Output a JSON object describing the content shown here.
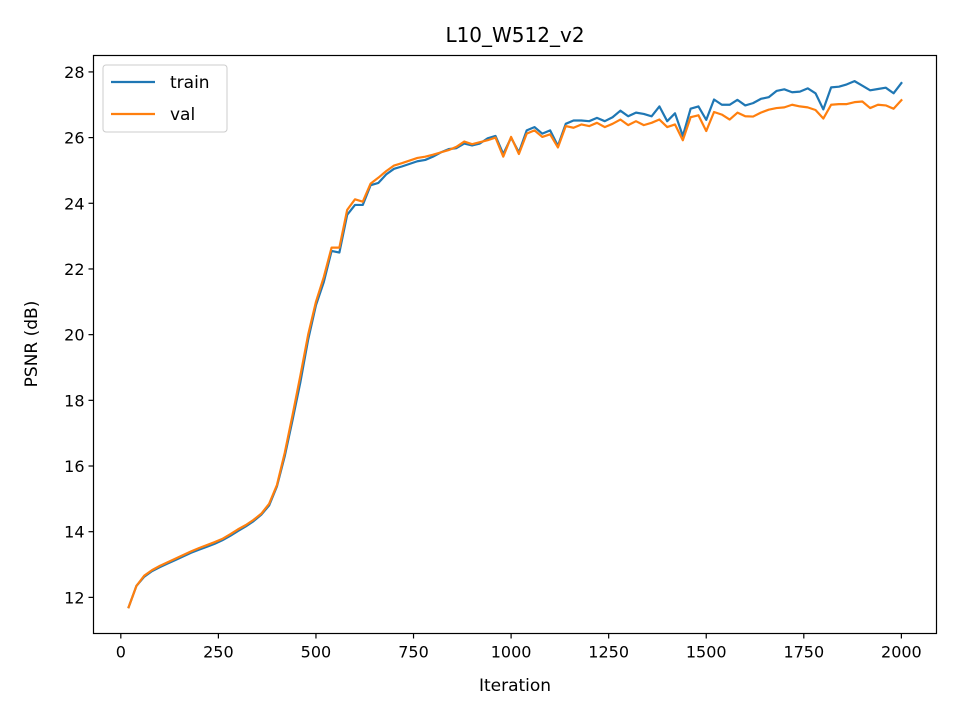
{
  "chart_data": {
    "type": "line",
    "title": "L10_W512_v2",
    "xlabel": "Iteration",
    "ylabel": "PSNR (dB)",
    "xlim": [
      -70,
      2090
    ],
    "ylim": [
      10.9,
      28.5
    ],
    "xticks": [
      0,
      250,
      500,
      750,
      1000,
      1250,
      1500,
      1750,
      2000
    ],
    "yticks": [
      12,
      14,
      16,
      18,
      20,
      22,
      24,
      26,
      28
    ],
    "grid": false,
    "legend_position": "upper-left",
    "x": [
      20,
      40,
      60,
      80,
      100,
      120,
      140,
      160,
      180,
      200,
      220,
      240,
      260,
      280,
      300,
      320,
      340,
      360,
      380,
      400,
      420,
      440,
      460,
      480,
      500,
      520,
      540,
      560,
      580,
      600,
      620,
      640,
      660,
      680,
      700,
      720,
      740,
      760,
      780,
      800,
      820,
      840,
      860,
      880,
      900,
      920,
      940,
      960,
      980,
      1000,
      1020,
      1040,
      1060,
      1080,
      1100,
      1120,
      1140,
      1160,
      1180,
      1200,
      1220,
      1240,
      1260,
      1280,
      1300,
      1320,
      1340,
      1360,
      1380,
      1400,
      1420,
      1440,
      1460,
      1480,
      1500,
      1520,
      1540,
      1560,
      1580,
      1600,
      1620,
      1640,
      1660,
      1680,
      1700,
      1720,
      1740,
      1760,
      1780,
      1800,
      1820,
      1840,
      1860,
      1880,
      1900,
      1920,
      1940,
      1960,
      1980,
      2000
    ],
    "series": [
      {
        "name": "train",
        "color": "#1f77b4",
        "values": [
          11.7,
          12.35,
          12.63,
          12.8,
          12.92,
          13.03,
          13.14,
          13.25,
          13.36,
          13.45,
          13.54,
          13.63,
          13.74,
          13.87,
          14.02,
          14.16,
          14.32,
          14.52,
          14.8,
          15.38,
          16.3,
          17.4,
          18.55,
          19.85,
          20.9,
          21.6,
          22.55,
          22.5,
          23.65,
          23.95,
          23.95,
          24.55,
          24.62,
          24.88,
          25.05,
          25.12,
          25.2,
          25.28,
          25.32,
          25.42,
          25.55,
          25.65,
          25.68,
          25.82,
          25.76,
          25.82,
          25.98,
          26.05,
          25.5,
          26.0,
          25.55,
          26.22,
          26.32,
          26.12,
          26.22,
          25.75,
          26.42,
          26.52,
          26.52,
          26.5,
          26.6,
          26.5,
          26.62,
          26.82,
          26.65,
          26.76,
          26.72,
          26.65,
          26.95,
          26.5,
          26.74,
          26.05,
          26.88,
          26.95,
          26.54,
          27.16,
          27.0,
          27.0,
          27.15,
          26.98,
          27.05,
          27.18,
          27.23,
          27.42,
          27.47,
          27.38,
          27.4,
          27.5,
          27.35,
          26.86,
          27.53,
          27.55,
          27.62,
          27.72,
          27.58,
          27.44,
          27.48,
          27.52,
          27.35,
          27.66
        ]
      },
      {
        "name": "val",
        "color": "#ff7f0e",
        "values": [
          11.7,
          12.35,
          12.66,
          12.83,
          12.96,
          13.07,
          13.18,
          13.29,
          13.4,
          13.5,
          13.59,
          13.68,
          13.78,
          13.92,
          14.07,
          14.2,
          14.36,
          14.55,
          14.85,
          15.42,
          16.4,
          17.55,
          18.75,
          20.0,
          21.0,
          21.75,
          22.65,
          22.65,
          23.8,
          24.12,
          24.05,
          24.6,
          24.78,
          24.98,
          25.15,
          25.22,
          25.3,
          25.38,
          25.42,
          25.48,
          25.55,
          25.62,
          25.72,
          25.88,
          25.8,
          25.86,
          25.92,
          26.0,
          25.42,
          26.02,
          25.5,
          26.12,
          26.22,
          26.02,
          26.1,
          25.7,
          26.35,
          26.3,
          26.4,
          26.35,
          26.45,
          26.32,
          26.42,
          26.55,
          26.38,
          26.5,
          26.38,
          26.45,
          26.55,
          26.32,
          26.4,
          25.92,
          26.62,
          26.68,
          26.2,
          26.78,
          26.7,
          26.55,
          26.76,
          26.65,
          26.64,
          26.76,
          26.85,
          26.9,
          26.92,
          27.0,
          26.95,
          26.92,
          26.84,
          26.58,
          27.0,
          27.02,
          27.02,
          27.08,
          27.1,
          26.9,
          27.0,
          26.98,
          26.88,
          27.14
        ]
      }
    ]
  }
}
